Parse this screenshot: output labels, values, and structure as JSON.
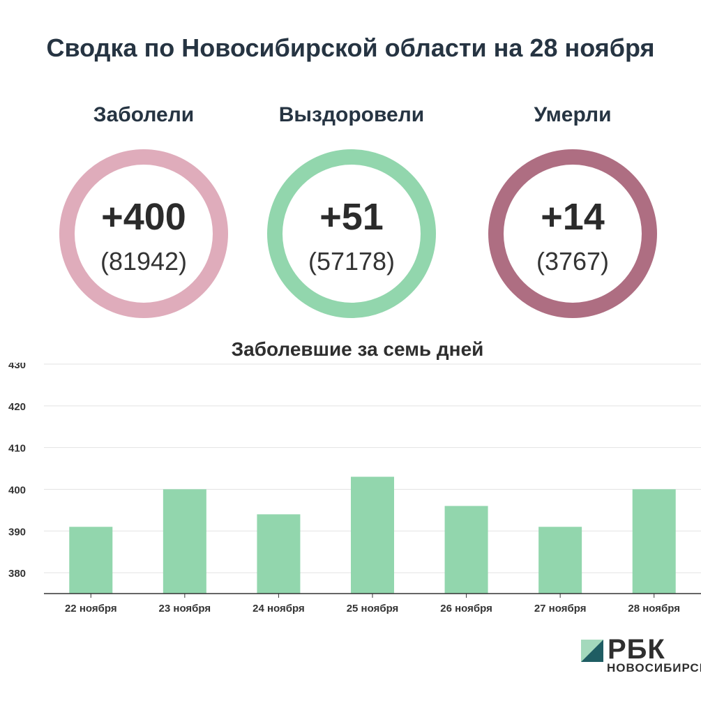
{
  "title": "Сводка по Новосибирской области на 28 ноября",
  "stats": [
    {
      "label": "Заболели",
      "value": "+400",
      "total": "(81942)",
      "color": "#dfacbb"
    },
    {
      "label": "Выздоровели",
      "value": "+51",
      "total": "(57178)",
      "color": "#92d6ad"
    },
    {
      "label": "Умерли",
      "value": "+14",
      "total": "(3767)",
      "color": "#ae6e82"
    }
  ],
  "chart_data": {
    "type": "bar",
    "title": "Заболевшие за семь дней",
    "categories": [
      "22 ноября",
      "23 ноября",
      "24 ноября",
      "25 ноября",
      "26 ноября",
      "27 ноября",
      "28 ноября"
    ],
    "values": [
      391,
      400,
      394,
      403,
      396,
      391,
      400
    ],
    "ylim": [
      375,
      430
    ],
    "yticks": [
      380,
      390,
      400,
      410,
      420,
      430
    ],
    "bar_color": "#92d6ad",
    "grid": true
  },
  "logo": {
    "text": "РБК",
    "subtext": "НОВОСИБИРСК",
    "color_light": "#a4d9bc",
    "color_dark": "#1f5d63"
  }
}
